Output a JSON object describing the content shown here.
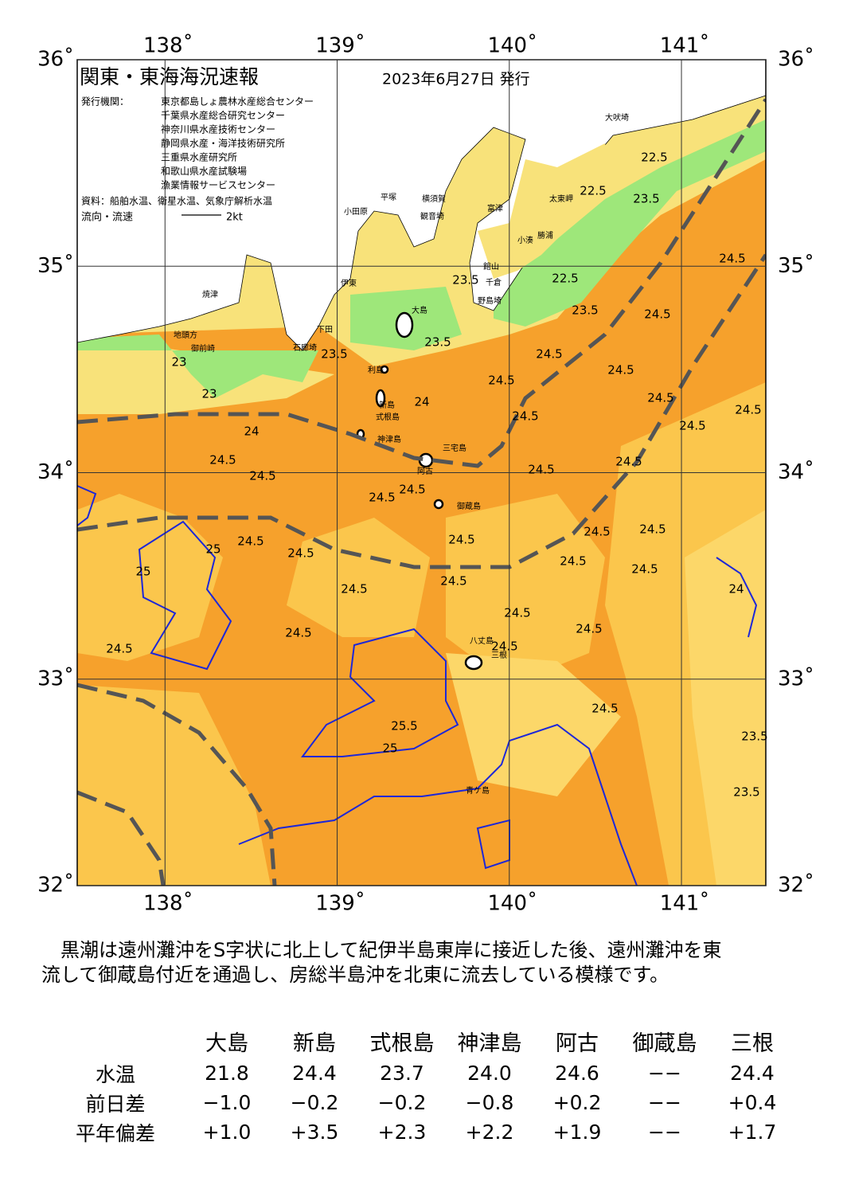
{
  "header": {
    "title": "関東・東海海況速報",
    "date": "2023年6月27日 発行",
    "issuer_label": "発行機関：",
    "issuers": [
      "東京都島しょ農林水産総合センター",
      "千葉県水産総合研究センター",
      "神奈川県水産技術センター",
      "静岡県水産・海洋技術研究所",
      "三重県水産研究所",
      "和歌山県水産試験場",
      "漁業情報サービスセンター"
    ],
    "source": "資料：船舶水温、衛星水温、気象庁解析水温",
    "flow_label": "流向・流速",
    "flow_scale": "2kt"
  },
  "map": {
    "lon_ticks": [
      {
        "value": 138,
        "label": "138˚"
      },
      {
        "value": 139,
        "label": "139˚"
      },
      {
        "value": 140,
        "label": "140˚"
      },
      {
        "value": 141,
        "label": "141˚"
      }
    ],
    "lat_ticks": [
      {
        "value": 36,
        "label": "36˚"
      },
      {
        "value": 35,
        "label": "35˚"
      },
      {
        "value": 34,
        "label": "34˚"
      },
      {
        "value": 33,
        "label": "33˚"
      },
      {
        "value": 32,
        "label": "32˚"
      }
    ],
    "place_names": [
      "大吠埼",
      "太東岬",
      "勝浦",
      "小湊",
      "館山",
      "千倉",
      "野島埼",
      "富津",
      "観音埼",
      "横須賀",
      "平塚",
      "小田原",
      "伊東",
      "石廊埼",
      "下田",
      "大島",
      "利島",
      "新島",
      "式根島",
      "神津島",
      "三宅島",
      "阿古",
      "御蔵島",
      "八丈島",
      "三根",
      "青ケ島",
      "地頭方",
      "焼津",
      "御前崎"
    ],
    "isotherm_labels": [
      "22.5",
      "22.5",
      "22.5",
      "23.5",
      "23.5",
      "23.5",
      "23.5",
      "23.5",
      "23",
      "23",
      "24.5",
      "24.5",
      "24.5",
      "24.5",
      "24.5",
      "24.5",
      "24.5",
      "24.5",
      "24.5",
      "24.5",
      "24.5",
      "24.5",
      "24.5",
      "24.5",
      "24.5",
      "24.5",
      "24.5",
      "24.5",
      "24.5",
      "24.5",
      "24.5",
      "24.5",
      "24.5",
      "24.5",
      "24.5",
      "24.5",
      "24.5",
      "24.5",
      "24.5",
      "24.5",
      "25.5",
      "25",
      "25",
      "25",
      "24",
      "24",
      "24",
      "23.5",
      "23.5"
    ]
  },
  "description": [
    "黒潮は遠州灘沖をS字状に北上して紀伊半島東岸に接近した後、遠州灘沖を東",
    "流して御蔵島付近を通過し、房総半島沖を北東に流去している模様です。"
  ],
  "table": {
    "columns": [
      "大島",
      "新島",
      "式根島",
      "神津島",
      "阿古",
      "御蔵島",
      "三根"
    ],
    "rows": [
      {
        "label": "水温",
        "cells": [
          "21.8",
          "24.4",
          "23.7",
          "24.0",
          "24.6",
          "−−",
          "24.4"
        ]
      },
      {
        "label": "前日差",
        "cells": [
          "−1.0",
          "−0.2",
          "−0.2",
          "−0.8",
          "+0.2",
          "−−",
          "+0.4"
        ]
      },
      {
        "label": "平年偏差",
        "cells": [
          "+1.0",
          "+3.5",
          "+2.3",
          "+2.2",
          "+1.9",
          "−−",
          "+1.7"
        ]
      }
    ]
  }
}
